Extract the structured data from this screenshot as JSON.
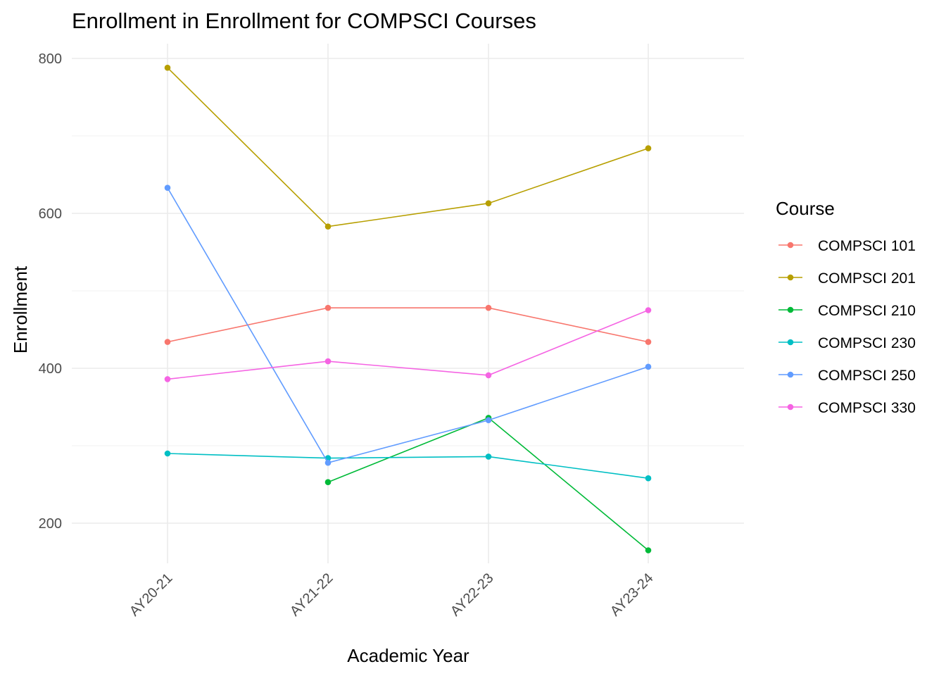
{
  "chart_data": {
    "type": "line",
    "title": "Enrollment in Enrollment for COMPSCI Courses",
    "xlabel": "Academic Year",
    "ylabel": "Enrollment",
    "categories": [
      "AY20-21",
      "AY21-22",
      "AY22-23",
      "AY23-24"
    ],
    "ylim": [
      130,
      820
    ],
    "yticks": [
      200,
      400,
      600,
      800
    ],
    "grid": true,
    "legend": {
      "title": "Course",
      "position": "right"
    },
    "series": [
      {
        "name": "COMPSCI 101",
        "color": "#F8766D",
        "values": [
          434,
          478,
          478,
          434
        ]
      },
      {
        "name": "COMPSCI 201",
        "color": "#B79F00",
        "values": [
          788,
          583,
          613,
          684
        ]
      },
      {
        "name": "COMPSCI 210",
        "color": "#00BA38",
        "values": [
          null,
          253,
          336,
          165
        ]
      },
      {
        "name": "COMPSCI 230",
        "color": "#00BFC4",
        "values": [
          290,
          284,
          286,
          258
        ]
      },
      {
        "name": "COMPSCI 250",
        "color": "#619CFF",
        "values": [
          633,
          278,
          333,
          402
        ]
      },
      {
        "name": "COMPSCI 330",
        "color": "#F564E3",
        "values": [
          386,
          409,
          391,
          475
        ]
      }
    ]
  }
}
